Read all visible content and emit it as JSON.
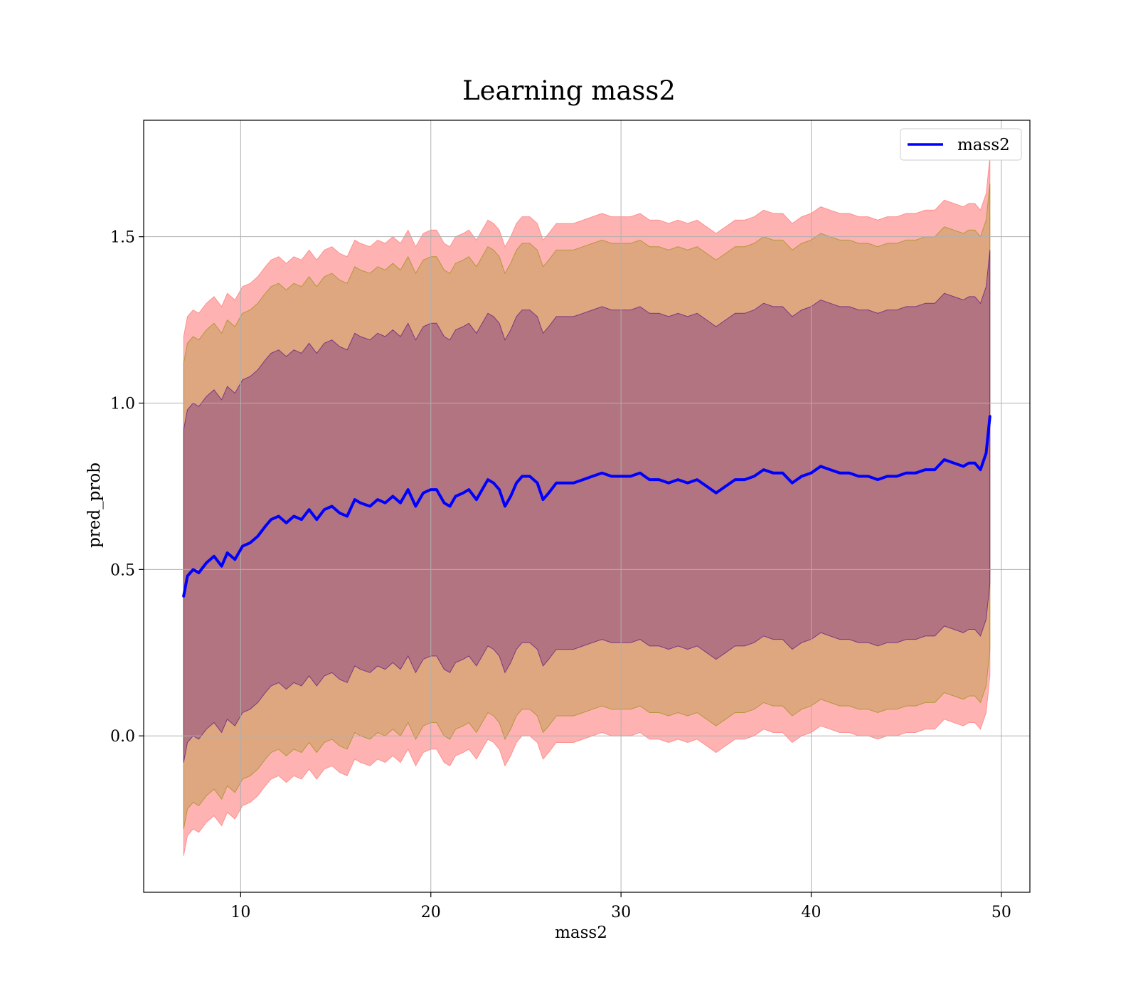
{
  "chart_data": {
    "type": "line",
    "title": "Learning mass2",
    "xlabel": "mass2",
    "ylabel": "pred_prob",
    "xlim": [
      4.9,
      51.5
    ],
    "ylim": [
      -0.47,
      1.85
    ],
    "xticks": [
      10,
      20,
      30,
      40,
      50
    ],
    "yticks": [
      0.0,
      0.5,
      1.0,
      1.5
    ],
    "xtick_labels": [
      "10",
      "20",
      "30",
      "40",
      "50"
    ],
    "ytick_labels": [
      "0.0",
      "0.5",
      "1.0",
      "1.5"
    ],
    "grid": true,
    "legend": {
      "position": "top-right",
      "entries": [
        "mass2"
      ]
    },
    "series": [
      {
        "name": "mass2",
        "color": "#0000ff",
        "x": [
          7.0,
          7.2,
          7.5,
          7.8,
          8.2,
          8.6,
          9.0,
          9.3,
          9.7,
          10.1,
          10.5,
          10.9,
          11.3,
          11.6,
          12.0,
          12.4,
          12.8,
          13.2,
          13.6,
          14.0,
          14.4,
          14.8,
          15.2,
          15.6,
          16.0,
          16.3,
          16.8,
          17.2,
          17.6,
          18.0,
          18.4,
          18.8,
          19.2,
          19.6,
          20.0,
          20.3,
          20.7,
          21.0,
          21.3,
          21.7,
          22.0,
          22.4,
          22.7,
          23.0,
          23.3,
          23.6,
          23.9,
          24.2,
          24.5,
          24.8,
          25.2,
          25.6,
          25.9,
          26.2,
          26.6,
          27.0,
          27.5,
          28.0,
          28.5,
          29.0,
          29.5,
          30.0,
          30.5,
          31.0,
          31.5,
          32.0,
          32.5,
          33.0,
          33.5,
          34.0,
          34.5,
          35.0,
          35.5,
          36.0,
          36.5,
          37.0,
          37.5,
          38.0,
          38.5,
          39.0,
          39.5,
          40.0,
          40.5,
          41.0,
          41.5,
          42.0,
          42.5,
          43.0,
          43.5,
          44.0,
          44.5,
          45.0,
          45.5,
          46.0,
          46.5,
          47.0,
          47.5,
          48.0,
          48.3,
          48.6,
          48.9,
          49.2,
          49.4
        ],
        "y": [
          0.42,
          0.48,
          0.5,
          0.49,
          0.52,
          0.54,
          0.51,
          0.55,
          0.53,
          0.57,
          0.58,
          0.6,
          0.63,
          0.65,
          0.66,
          0.64,
          0.66,
          0.65,
          0.68,
          0.65,
          0.68,
          0.69,
          0.67,
          0.66,
          0.71,
          0.7,
          0.69,
          0.71,
          0.7,
          0.72,
          0.7,
          0.74,
          0.69,
          0.73,
          0.74,
          0.74,
          0.7,
          0.69,
          0.72,
          0.73,
          0.74,
          0.71,
          0.74,
          0.77,
          0.76,
          0.74,
          0.69,
          0.72,
          0.76,
          0.78,
          0.78,
          0.76,
          0.71,
          0.73,
          0.76,
          0.76,
          0.76,
          0.77,
          0.78,
          0.79,
          0.78,
          0.78,
          0.78,
          0.79,
          0.77,
          0.77,
          0.76,
          0.77,
          0.76,
          0.77,
          0.75,
          0.73,
          0.75,
          0.77,
          0.77,
          0.78,
          0.8,
          0.79,
          0.79,
          0.76,
          0.78,
          0.79,
          0.81,
          0.8,
          0.79,
          0.79,
          0.78,
          0.78,
          0.77,
          0.78,
          0.78,
          0.79,
          0.79,
          0.8,
          0.8,
          0.83,
          0.82,
          0.81,
          0.82,
          0.82,
          0.8,
          0.85,
          0.96
        ]
      }
    ],
    "bands": [
      {
        "color": "#ff6666",
        "opacity": 0.5,
        "offset": 0.78
      },
      {
        "color": "#8b8b00",
        "opacity": 0.28,
        "offset": 0.7
      },
      {
        "color": "#4b0082",
        "opacity": 0.3,
        "offset": 0.5
      }
    ]
  }
}
